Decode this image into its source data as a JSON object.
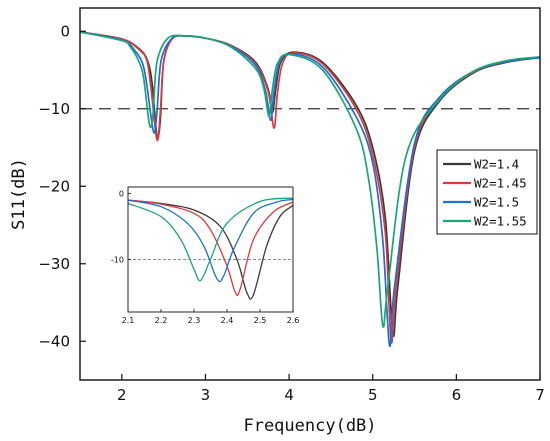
{
  "chart_data": {
    "type": "line",
    "xlabel": "Frequency(dB)",
    "ylabel": "S11(dB)",
    "xlim": [
      1.5,
      7
    ],
    "ylim": [
      -45,
      3
    ],
    "x_ticks": [
      "2",
      "3",
      "4",
      "5",
      "6",
      "7"
    ],
    "y_ticks": [
      "0",
      "-10",
      "-20",
      "-30",
      "-40"
    ],
    "reference_line": {
      "y": -10,
      "style": "dashed"
    },
    "legend_position": "right",
    "series": [
      {
        "name": "W2=1.4",
        "color": "#3a3a3a",
        "x": [
          1.5,
          2.0,
          2.2,
          2.3,
          2.36,
          2.42,
          2.46,
          2.5,
          2.6,
          2.75,
          3.0,
          3.3,
          3.6,
          3.75,
          3.8,
          3.84,
          3.9,
          4.05,
          4.4,
          4.8,
          5.0,
          5.15,
          5.24,
          5.3,
          5.5,
          5.8,
          6.2,
          6.6,
          7.0
        ],
        "y": [
          -0.1,
          -1.0,
          -2.2,
          -3.6,
          -6.5,
          -13.5,
          -11.5,
          -4.0,
          -1.0,
          -0.6,
          -0.9,
          -1.8,
          -4.0,
          -7.5,
          -10.5,
          -7.5,
          -4.0,
          -2.7,
          -4.0,
          -9.5,
          -15.0,
          -24.0,
          -39.0,
          -33.0,
          -15.5,
          -9.0,
          -5.4,
          -4.0,
          -3.4
        ]
      },
      {
        "name": "W2=1.45",
        "color": "#e0383c",
        "x": [
          1.5,
          2.0,
          2.2,
          2.3,
          2.35,
          2.42,
          2.46,
          2.5,
          2.6,
          2.75,
          3.0,
          3.3,
          3.6,
          3.75,
          3.82,
          3.86,
          3.92,
          4.05,
          4.4,
          4.8,
          5.0,
          5.15,
          5.22,
          5.28,
          5.5,
          5.8,
          6.2,
          6.6,
          7.0
        ],
        "y": [
          -0.1,
          -1.0,
          -2.3,
          -3.8,
          -7.5,
          -14.0,
          -10.5,
          -4.0,
          -1.0,
          -0.6,
          -0.9,
          -1.8,
          -4.2,
          -7.8,
          -12.5,
          -8.0,
          -4.2,
          -2.8,
          -4.2,
          -10.0,
          -16.0,
          -26.0,
          -40.0,
          -33.0,
          -15.0,
          -8.8,
          -5.3,
          -3.9,
          -3.4
        ]
      },
      {
        "name": "W2=1.5",
        "color": "#1e6fd6",
        "x": [
          1.5,
          2.0,
          2.15,
          2.25,
          2.3,
          2.38,
          2.42,
          2.47,
          2.6,
          2.75,
          3.0,
          3.3,
          3.6,
          3.72,
          3.78,
          3.82,
          3.88,
          4.02,
          4.4,
          4.8,
          5.0,
          5.12,
          5.2,
          5.26,
          5.5,
          5.8,
          6.2,
          6.6,
          7.0
        ],
        "y": [
          -0.1,
          -1.1,
          -2.4,
          -4.2,
          -7.0,
          -13.0,
          -10.5,
          -3.8,
          -0.9,
          -0.6,
          -0.9,
          -1.9,
          -4.4,
          -7.8,
          -11.5,
          -7.8,
          -4.2,
          -2.9,
          -4.6,
          -11.0,
          -17.0,
          -27.0,
          -40.5,
          -33.0,
          -14.5,
          -8.5,
          -5.2,
          -3.9,
          -3.4
        ]
      },
      {
        "name": "W2=1.55",
        "color": "#1aa676",
        "x": [
          1.5,
          2.0,
          2.1,
          2.2,
          2.26,
          2.33,
          2.37,
          2.42,
          2.55,
          2.75,
          3.0,
          3.3,
          3.6,
          3.7,
          3.76,
          3.8,
          3.86,
          4.0,
          4.4,
          4.8,
          4.95,
          5.05,
          5.12,
          5.18,
          5.4,
          5.8,
          6.2,
          6.6,
          7.0
        ],
        "y": [
          -0.1,
          -1.2,
          -2.0,
          -3.8,
          -6.0,
          -12.0,
          -11.0,
          -4.0,
          -0.9,
          -0.6,
          -0.9,
          -2.0,
          -4.8,
          -7.5,
          -11.0,
          -7.5,
          -4.2,
          -3.0,
          -5.0,
          -12.5,
          -19.0,
          -28.0,
          -38.0,
          -33.0,
          -16.0,
          -8.8,
          -5.2,
          -3.8,
          -3.3
        ]
      }
    ],
    "inset": {
      "xlim": [
        2.1,
        2.6
      ],
      "ylim": [
        -18,
        1
      ],
      "x_ticks": [
        "2.1",
        "2.2",
        "2.3",
        "2.4",
        "2.5",
        "2.6"
      ],
      "y_ticks": [
        "0",
        "-10"
      ],
      "reference_line": {
        "y": -10,
        "style": "dashed"
      },
      "series": [
        {
          "name": "W2=1.4",
          "color": "#3a3a3a",
          "x": [
            2.1,
            2.2,
            2.3,
            2.38,
            2.43,
            2.46,
            2.48,
            2.52,
            2.56,
            2.6
          ],
          "y": [
            -1.0,
            -1.5,
            -2.5,
            -5.0,
            -10.0,
            -15.0,
            -15.4,
            -8.0,
            -3.5,
            -1.8
          ]
        },
        {
          "name": "W2=1.45",
          "color": "#e0383c",
          "x": [
            2.1,
            2.2,
            2.3,
            2.35,
            2.4,
            2.425,
            2.44,
            2.48,
            2.54,
            2.6
          ],
          "y": [
            -1.0,
            -1.6,
            -3.0,
            -5.5,
            -11.0,
            -15.0,
            -14.5,
            -7.0,
            -2.8,
            -1.3
          ]
        },
        {
          "name": "W2=1.5",
          "color": "#1e6fd6",
          "x": [
            2.1,
            2.2,
            2.28,
            2.33,
            2.37,
            2.39,
            2.42,
            2.48,
            2.55,
            2.6
          ],
          "y": [
            -1.0,
            -2.0,
            -4.5,
            -8.0,
            -13.0,
            -12.5,
            -8.5,
            -3.0,
            -1.3,
            -0.9
          ]
        },
        {
          "name": "W2=1.55",
          "color": "#1aa676",
          "x": [
            2.1,
            2.2,
            2.26,
            2.3,
            2.32,
            2.35,
            2.4,
            2.5,
            2.6
          ],
          "y": [
            -1.5,
            -3.5,
            -7.0,
            -11.5,
            -13.2,
            -10.0,
            -4.5,
            -1.2,
            -0.7
          ]
        }
      ]
    }
  }
}
